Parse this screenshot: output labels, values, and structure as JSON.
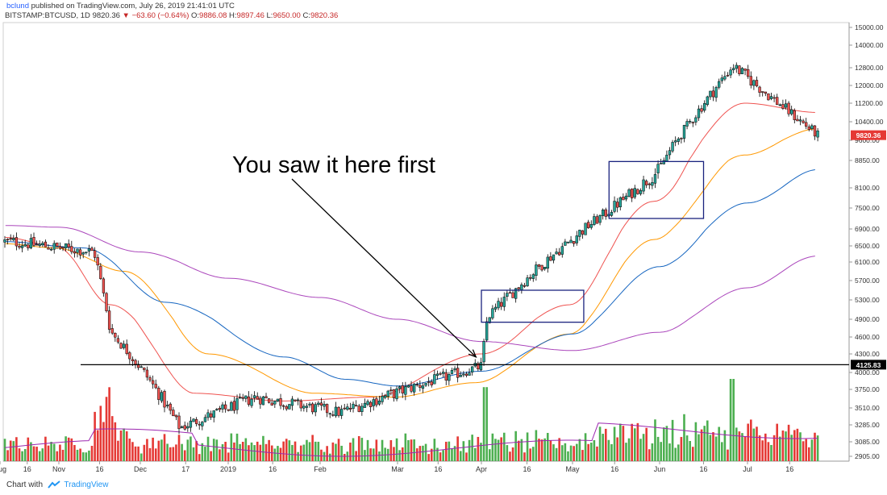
{
  "header": {
    "author": "bclund",
    "published": "published on TradingView.com, July 26, 2019 21:41:01 UTC",
    "symbol": "BITSTAMP:BTCUSD, 1D",
    "last": "9820.36",
    "change": "▼ −63.60 (−0.64%)",
    "o_label": "O:",
    "o": "9886.08",
    "h_label": "H:",
    "h": "9897.46",
    "l_label": "L:",
    "l": "9650.00",
    "c_label": "C:",
    "c": "9820.36"
  },
  "footer": {
    "chart_with": "Chart with",
    "brand": "TradingView"
  },
  "chart_data": {
    "type": "line",
    "subtype": "candlestick with volume, moving averages, support line and annotation",
    "title": "",
    "xlabel": "",
    "ylabel": "",
    "ylim": [
      2905,
      15200
    ],
    "y_ticks": [
      "15000.00",
      "14000.00",
      "12800.00",
      "12000.00",
      "11200.00",
      "10400.00",
      "9600.00",
      "8850.00",
      "8100.00",
      "7500.00",
      "6900.00",
      "6500.00",
      "6100.00",
      "5700.00",
      "5300.00",
      "4900.00",
      "4600.00",
      "4300.00",
      "4000.00",
      "3750.00",
      "3510.00",
      "3285.00",
      "3085.00",
      "2905.00"
    ],
    "x_ticks": [
      "16",
      "Nov",
      "16",
      "Dec",
      "17",
      "2019",
      "16",
      "Feb",
      "Mar",
      "16",
      "Apr",
      "16",
      "May",
      "16",
      "Jun",
      "16",
      "Jul",
      "16",
      "Aug"
    ],
    "price_labels": {
      "last": "9820.36",
      "support": "4125.83"
    },
    "colors": {
      "up": "#26a69a",
      "down": "#ef5350",
      "vol_up": "#4caf50",
      "vol_down": "#e53935",
      "ma_fast": "#ef5350",
      "ma_mid": "#ff9800",
      "ma_slow": "#1565c0",
      "ma_long": "#ab47bc",
      "box": "#1a237e",
      "support": "#000000",
      "vol_ma": "#9c27b0"
    },
    "series": [
      {
        "name": "",
        "x": [
          "Oct 8",
          "Nov 14",
          "Nov 20",
          "Dec 15",
          "Jan 10",
          "Feb 8",
          "Mar 20",
          "Apr 1",
          "Apr 3",
          "May 12",
          "Jun 1",
          "Jun 26",
          "Jul 10",
          "Jul 26"
        ],
        "values": [
          6600,
          6350,
          4700,
          3250,
          3650,
          3450,
          3950,
          4100,
          4950,
          7300,
          8600,
          12900,
          11400,
          9820
        ]
      },
      {
        "name": "",
        "x": [
          "Oct 5",
          "Oct 30",
          "Nov 20",
          "Dec 20",
          "Jan 20",
          "Feb 20",
          "Apr 1",
          "Apr 30",
          "May 30",
          "Jun 30",
          "Jul 26"
        ],
        "values": [
          6700,
          6500,
          5200,
          3700,
          3600,
          3650,
          4300,
          5200,
          7700,
          11200,
          10800
        ]
      },
      {
        "name": "",
        "x": [
          "Oct 5",
          "Oct 30",
          "Nov 25",
          "Dec 25",
          "Jan 30",
          "Feb 28",
          "Mar 30",
          "Apr 30",
          "May 30",
          "Jun 30",
          "Jul 26"
        ],
        "values": [
          6550,
          6450,
          5900,
          4300,
          3700,
          3650,
          3850,
          4650,
          6650,
          9050,
          10100
        ]
      },
      {
        "name": "",
        "x": [
          "Oct 5",
          "Nov 10",
          "Dec 10",
          "Jan 20",
          "Feb 10",
          "Mar 1",
          "Apr 1",
          "May 1",
          "Jun 1",
          "Jul 1",
          "Jul 26"
        ],
        "values": [
          6600,
          6450,
          5250,
          4250,
          3900,
          3800,
          4020,
          4650,
          6000,
          7650,
          8600
        ]
      },
      {
        "name": "",
        "x": [
          "Oct 5",
          "Nov 1",
          "Dec 1",
          "Jan 1",
          "Feb 1",
          "Mar 1",
          "Apr 1",
          "May 1",
          "Jun 1",
          "Jul 1",
          "Jul 26"
        ],
        "values": [
          7000,
          6950,
          6350,
          5750,
          5350,
          4900,
          4520,
          4360,
          4680,
          5550,
          6250
        ]
      }
    ],
    "support_level": 4125.83,
    "boxes": [
      {
        "x": [
          "Apr 1",
          "May 5"
        ],
        "y": [
          4850,
          5500
        ]
      },
      {
        "x": [
          "May 14",
          "Jun 16"
        ],
        "y": [
          7200,
          8820
        ]
      }
    ],
    "annotation": {
      "text": "You saw it here first",
      "points_to": {
        "x": "Mar 30",
        "y": 4250
      }
    },
    "volume_scale_max": 100
  }
}
